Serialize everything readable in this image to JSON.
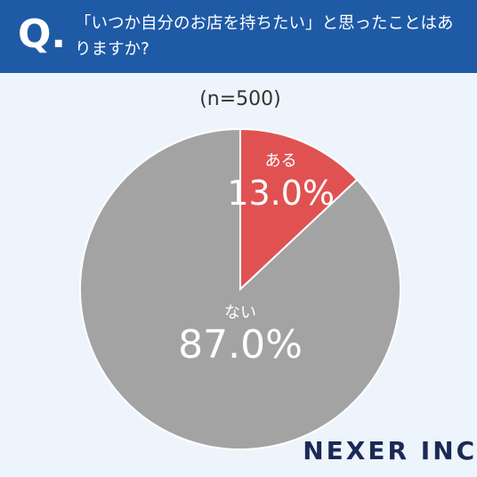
{
  "chart_data": {
    "type": "pie",
    "question_label": "Q.",
    "title": "「いつか自分のお店を持ちたい」と思ったことはありますか?",
    "subtitle": "(n=500)",
    "categories": [
      "ある",
      "ない"
    ],
    "values": [
      13.0,
      87.0
    ],
    "value_labels": [
      "13.0%",
      "87.0%"
    ],
    "colors": [
      "#e05252",
      "#a3a3a3"
    ],
    "brand": "NEXER INC."
  }
}
